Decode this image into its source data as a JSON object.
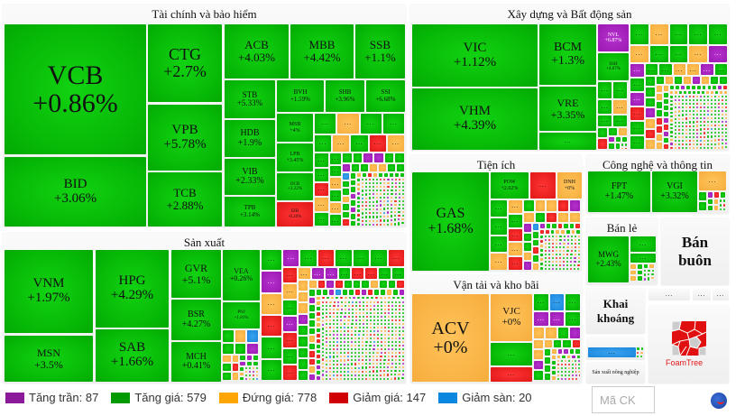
{
  "filler_label": "...",
  "groups": [
    {
      "id": "finance",
      "title": "Tài chính và bảo hiểm",
      "tiles": [
        {
          "ticker": "VCB",
          "change": "+0.86%",
          "status": "g"
        },
        {
          "ticker": "BID",
          "change": "+3.06%",
          "status": "g"
        },
        {
          "ticker": "CTG",
          "change": "+2.7%",
          "status": "g"
        },
        {
          "ticker": "VPB",
          "change": "+5.78%",
          "status": "g"
        },
        {
          "ticker": "TCB",
          "change": "+2.88%",
          "status": "g"
        },
        {
          "ticker": "ACB",
          "change": "+4.03%",
          "status": "g"
        },
        {
          "ticker": "MBB",
          "change": "+4.42%",
          "status": "g"
        },
        {
          "ticker": "SSB",
          "change": "+1.1%",
          "status": "g"
        },
        {
          "ticker": "STB",
          "change": "+5.33%",
          "status": "g"
        },
        {
          "ticker": "HDB",
          "change": "+1.9%",
          "status": "g"
        },
        {
          "ticker": "VIB",
          "change": "+2.33%",
          "status": "g"
        },
        {
          "ticker": "TPB",
          "change": "+3.14%",
          "status": "g"
        },
        {
          "ticker": "BVH",
          "change": "+1.59%",
          "status": "g"
        },
        {
          "ticker": "SHB",
          "change": "+3.96%",
          "status": "g"
        },
        {
          "ticker": "SSI",
          "change": "+6.68%",
          "status": "g"
        },
        {
          "ticker": "MSB",
          "change": "+4%",
          "status": "g"
        },
        {
          "ticker": "LPB",
          "change": "+3.45%",
          "status": "g"
        },
        {
          "ticker": "OCB",
          "change": "+2.22%",
          "status": "g"
        },
        {
          "ticker": "EIB",
          "change": "-0.26%",
          "status": "r"
        }
      ]
    },
    {
      "id": "realestate",
      "title": "Xây dựng và Bất động sản",
      "tiles": [
        {
          "ticker": "VIC",
          "change": "+1.12%",
          "status": "g"
        },
        {
          "ticker": "VHM",
          "change": "+4.39%",
          "status": "g"
        },
        {
          "ticker": "BCM",
          "change": "+1.3%",
          "status": "g"
        },
        {
          "ticker": "VRE",
          "change": "+3.35%",
          "status": "g"
        },
        {
          "ticker": "NVL",
          "change": "+6.87%",
          "status": "p"
        },
        {
          "ticker": "SSH",
          "change": "+4.07%",
          "status": "g"
        }
      ]
    },
    {
      "id": "utilities",
      "title": "Tiện ích",
      "tiles": [
        {
          "ticker": "GAS",
          "change": "+1.68%",
          "status": "g"
        },
        {
          "ticker": "POW",
          "change": "+2.02%",
          "status": "g"
        },
        {
          "ticker": "DNH",
          "change": "+0%",
          "status": "o"
        }
      ]
    },
    {
      "id": "tech",
      "title": "Công nghệ và thông tin",
      "tiles": [
        {
          "ticker": "FPT",
          "change": "+1.47%",
          "status": "g"
        },
        {
          "ticker": "VGI",
          "change": "+3.32%",
          "status": "g"
        }
      ]
    },
    {
      "id": "retail",
      "title": "Bán lẻ",
      "tiles": [
        {
          "ticker": "MWG",
          "change": "+2.43%",
          "status": "g"
        }
      ]
    },
    {
      "id": "wholesale",
      "title": "Bán buôn",
      "tiles": []
    },
    {
      "id": "mining",
      "title": "Khai khoáng",
      "tiles": []
    },
    {
      "id": "agri",
      "title": "Sản xuất nông nghiệp",
      "tiles": []
    },
    {
      "id": "transport",
      "title": "Vận tải và kho bãi",
      "tiles": [
        {
          "ticker": "ACV",
          "change": "+0%",
          "status": "o"
        },
        {
          "ticker": "VJC",
          "change": "+0%",
          "status": "o"
        }
      ]
    },
    {
      "id": "manufacturing",
      "title": "Sản xuất",
      "tiles": [
        {
          "ticker": "VNM",
          "change": "+1.97%",
          "status": "g"
        },
        {
          "ticker": "MSN",
          "change": "+3.5%",
          "status": "g"
        },
        {
          "ticker": "HPG",
          "change": "+4.29%",
          "status": "g"
        },
        {
          "ticker": "SAB",
          "change": "+1.66%",
          "status": "g"
        },
        {
          "ticker": "GVR",
          "change": "+5.1%",
          "status": "g"
        },
        {
          "ticker": "BSR",
          "change": "+4.27%",
          "status": "g"
        },
        {
          "ticker": "MCH",
          "change": "+0.41%",
          "status": "g"
        },
        {
          "ticker": "VEA",
          "change": "+0.26%",
          "status": "g"
        },
        {
          "ticker": "PNJ",
          "change": "+1.81%",
          "status": "g"
        }
      ]
    }
  ],
  "legend": [
    {
      "label": "Tăng trần: 87",
      "color": "#8b1a9b"
    },
    {
      "label": "Tăng giá: 579",
      "color": "#009a00"
    },
    {
      "label": "Đứng giá: 778",
      "color": "#ffa500"
    },
    {
      "label": "Giảm giá: 147",
      "color": "#d00000"
    },
    {
      "label": "Giảm sàn: 20",
      "color": "#0a88e0"
    }
  ],
  "search": {
    "placeholder": "Mã CK"
  },
  "foamtree_logo_text": "FoamTree"
}
